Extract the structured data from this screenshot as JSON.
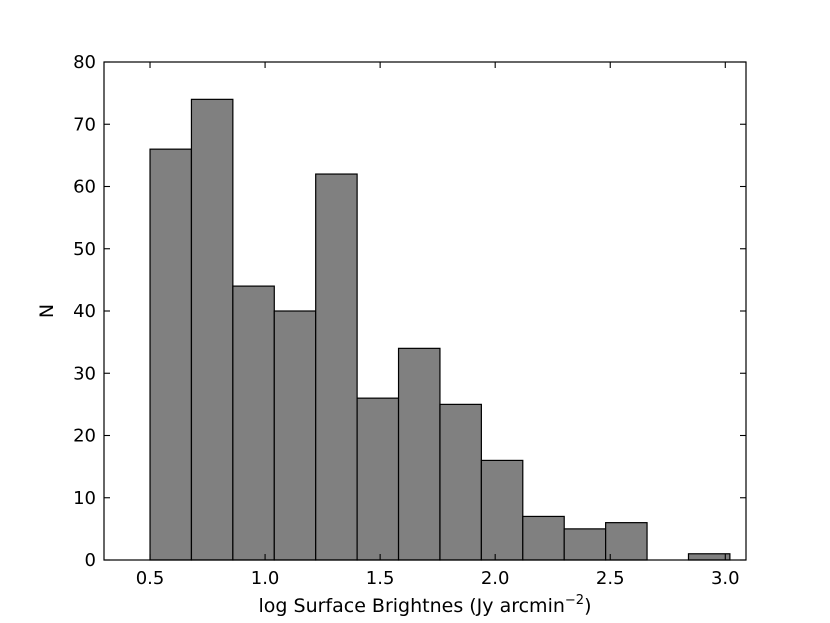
{
  "chart_data": {
    "type": "bar",
    "subtype": "histogram",
    "title": "",
    "xlabel": "log Surface Brightnes (Jy arcmin",
    "xlabel_sup": "−2",
    "xlabel_close": ")",
    "ylabel": "N",
    "xlim": [
      0.3,
      3.09
    ],
    "ylim": [
      0,
      80
    ],
    "xticks": [
      0.5,
      1.0,
      1.5,
      2.0,
      2.5,
      3.0
    ],
    "xtick_labels": [
      "0.5",
      "1.0",
      "1.5",
      "2.0",
      "2.5",
      "3.0"
    ],
    "yticks": [
      0,
      10,
      20,
      30,
      40,
      50,
      60,
      70,
      80
    ],
    "ytick_labels": [
      "0",
      "10",
      "20",
      "30",
      "40",
      "50",
      "60",
      "70",
      "80"
    ],
    "bins": [
      {
        "x0": 0.5,
        "x1": 0.68,
        "count": 66
      },
      {
        "x0": 0.68,
        "x1": 0.86,
        "count": 74
      },
      {
        "x0": 0.86,
        "x1": 1.04,
        "count": 44
      },
      {
        "x0": 1.04,
        "x1": 1.22,
        "count": 40
      },
      {
        "x0": 1.22,
        "x1": 1.4,
        "count": 62
      },
      {
        "x0": 1.4,
        "x1": 1.58,
        "count": 26
      },
      {
        "x0": 1.58,
        "x1": 1.76,
        "count": 34
      },
      {
        "x0": 1.76,
        "x1": 1.94,
        "count": 25
      },
      {
        "x0": 1.94,
        "x1": 2.12,
        "count": 16
      },
      {
        "x0": 2.12,
        "x1": 2.3,
        "count": 7
      },
      {
        "x0": 2.3,
        "x1": 2.48,
        "count": 5
      },
      {
        "x0": 2.48,
        "x1": 2.66,
        "count": 6
      },
      {
        "x0": 2.66,
        "x1": 2.84,
        "count": 0
      },
      {
        "x0": 2.84,
        "x1": 3.02,
        "count": 1
      }
    ],
    "bar_color": "#808080",
    "edge_color": "#000000",
    "grid": false,
    "legend": false
  }
}
